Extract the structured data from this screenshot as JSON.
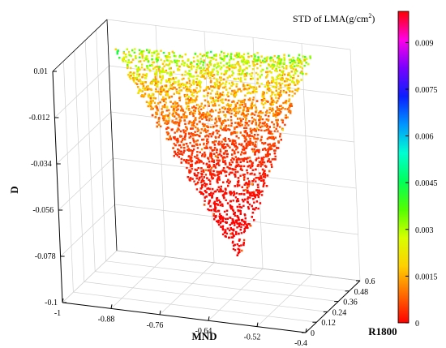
{
  "chart_data": {
    "type": "scatter",
    "title": "",
    "xlabel": "MND",
    "ylabel": "R1800",
    "zlabel": "D",
    "x_ticks": [
      "-1",
      "-0.88",
      "-0.76",
      "-0.64",
      "-0.52",
      "-0.4"
    ],
    "y_ticks": [
      "0",
      "0.12",
      "0.24",
      "0.36",
      "0.48",
      "0.6"
    ],
    "z_ticks": [
      "-0.1",
      "-0.078",
      "-0.056",
      "-0.034",
      "-0.012",
      "0.01"
    ],
    "xlim": [
      -1,
      -0.4
    ],
    "ylim": [
      0,
      0.6
    ],
    "zlim": [
      -0.1,
      0.01
    ],
    "grid": true,
    "colorbar": {
      "title": "STD of LMA(g/cm",
      "title_sup": "2",
      "title_close": ")",
      "range": [
        0,
        0.01
      ],
      "ticks": [
        "0",
        "0.0015",
        "0.003",
        "0.0045",
        "0.006",
        "0.0075",
        "0.009"
      ],
      "colormap": [
        "#ff0000",
        "#ff6a00",
        "#ffd000",
        "#d8ff00",
        "#52ff00",
        "#00ff5a",
        "#00ffd2",
        "#0096ff",
        "#0a1eff",
        "#7800ff",
        "#ff00e6",
        "#ff0000"
      ]
    },
    "point_cloud": {
      "description_shape": "triangular wedge",
      "vertices": [
        {
          "mnd": -0.97,
          "r1800": 0.52,
          "d": 0.0
        },
        {
          "mnd": -0.5,
          "r1800": 0.6,
          "d": 0.005
        },
        {
          "mnd": -0.62,
          "r1800": 0.25,
          "d": -0.08
        }
      ],
      "std_range": [
        0.0,
        0.0035
      ],
      "note": "approximate"
    }
  }
}
